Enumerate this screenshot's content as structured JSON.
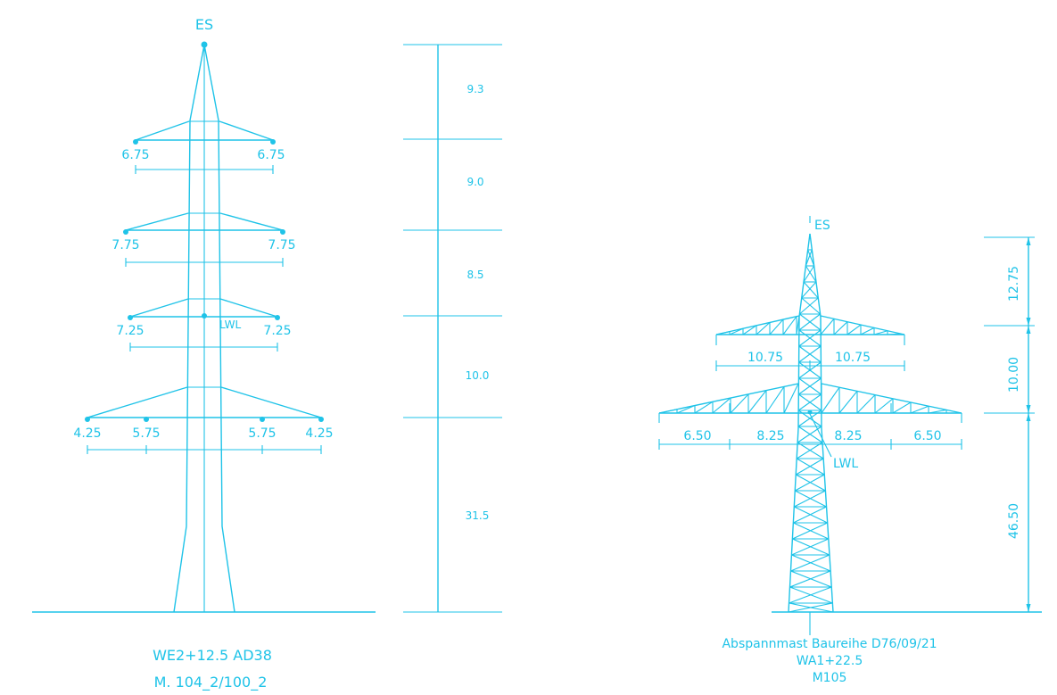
{
  "colors": {
    "line": "#1fc3e8",
    "background": "#ffffff"
  },
  "left_tower": {
    "top_label": "ES",
    "lwl_label": "LWL",
    "arm1": {
      "left": "6.75",
      "right": "6.75"
    },
    "arm2": {
      "left": "7.75",
      "right": "7.75"
    },
    "arm3": {
      "left": "7.25",
      "right": "7.25"
    },
    "arm4": {
      "outer_left": "4.25",
      "inner_left": "5.75",
      "inner_right": "5.75",
      "outer_right": "4.25"
    },
    "heights": [
      "9.3",
      "9.0",
      "8.5",
      "10.0",
      "31.5"
    ],
    "caption_line1": "WE2+12.5 AD38",
    "caption_line2": "M. 104_2/100_2"
  },
  "right_tower": {
    "top_label": "ES",
    "lwl_label": "LWL",
    "upper_arm": {
      "left": "10.75",
      "right": "10.75"
    },
    "lower_arm": {
      "outer_left": "6.50",
      "inner_left": "8.25",
      "inner_right": "8.25",
      "outer_right": "6.50"
    },
    "heights": [
      "12.75",
      "10.00",
      "46.50"
    ],
    "caption_line1": "Abspannmast Baureihe D76/09/21",
    "caption_line2": "WA1+22.5",
    "caption_line3": "M105"
  }
}
